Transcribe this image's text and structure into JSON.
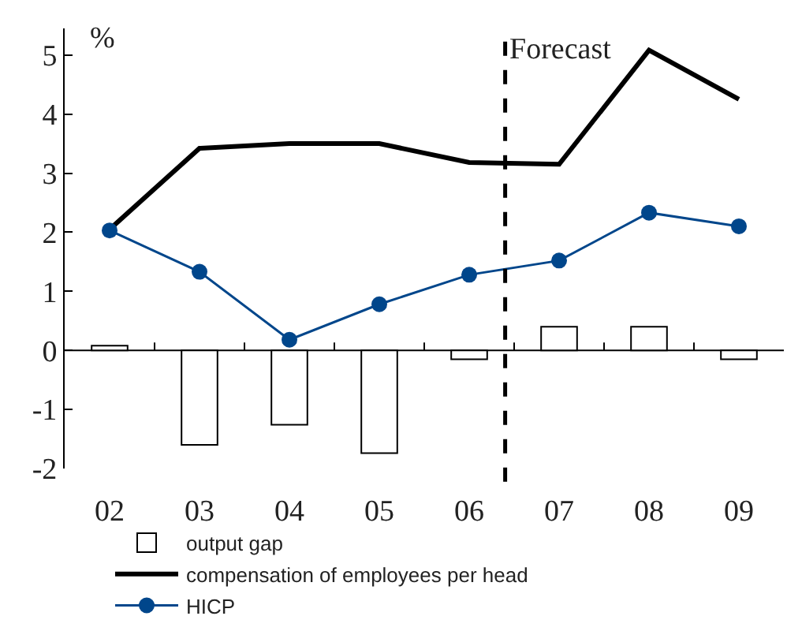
{
  "chart_data": {
    "type": "bar",
    "x": [
      2002,
      2003,
      2004,
      2005,
      2006,
      2007,
      2008,
      2009
    ],
    "series": [
      {
        "name": "output gap",
        "color": "#ffffff",
        "values": [
          0.08,
          -1.6,
          -1.26,
          -1.74,
          -0.15,
          0.4,
          0.4,
          -0.15
        ]
      },
      {
        "name": "compensation of employees per head",
        "type": "line",
        "color": "#000000",
        "marker": "none",
        "values": [
          2.05,
          3.42,
          3.5,
          3.5,
          3.18,
          3.15,
          5.08,
          4.25
        ]
      },
      {
        "name": "HICP",
        "type": "line",
        "color": "#00468b",
        "marker": "circle",
        "values": [
          2.03,
          1.33,
          0.18,
          0.78,
          1.28,
          1.52,
          2.33,
          2.1
        ]
      }
    ],
    "ylabel": "%",
    "xlim": [
      2001.5,
      2009.5
    ],
    "xticks": [
      {
        "value": 2002,
        "label": "02"
      },
      {
        "value": 2003,
        "label": "03"
      },
      {
        "value": 2004,
        "label": "04"
      },
      {
        "value": 2005,
        "label": "05"
      },
      {
        "value": 2006,
        "label": "06"
      },
      {
        "value": 2007,
        "label": "07"
      },
      {
        "value": 2008,
        "label": "08"
      },
      {
        "value": 2009,
        "label": "09"
      },
      {
        "value": 2002.5,
        "label": null
      },
      {
        "value": 2003.5,
        "label": null
      },
      {
        "value": 2004.5,
        "label": null
      },
      {
        "value": 2005.5,
        "label": null
      },
      {
        "value": 2006.5,
        "label": null
      },
      {
        "value": 2007.5,
        "label": null
      },
      {
        "value": 2008.5,
        "label": null
      }
    ],
    "ylim": [
      -2,
      5.45
    ],
    "yticks": [
      -2,
      -1,
      0,
      1,
      2,
      3,
      4,
      5
    ],
    "ref_lines": [
      {
        "axis": "y",
        "value": 0,
        "color": "#000000",
        "line_style": "solid"
      },
      {
        "axis": "x",
        "value": 2006.4,
        "label": "Forecast",
        "color": "#000000",
        "line_style": "dashed"
      }
    ],
    "legend": "bottom"
  }
}
